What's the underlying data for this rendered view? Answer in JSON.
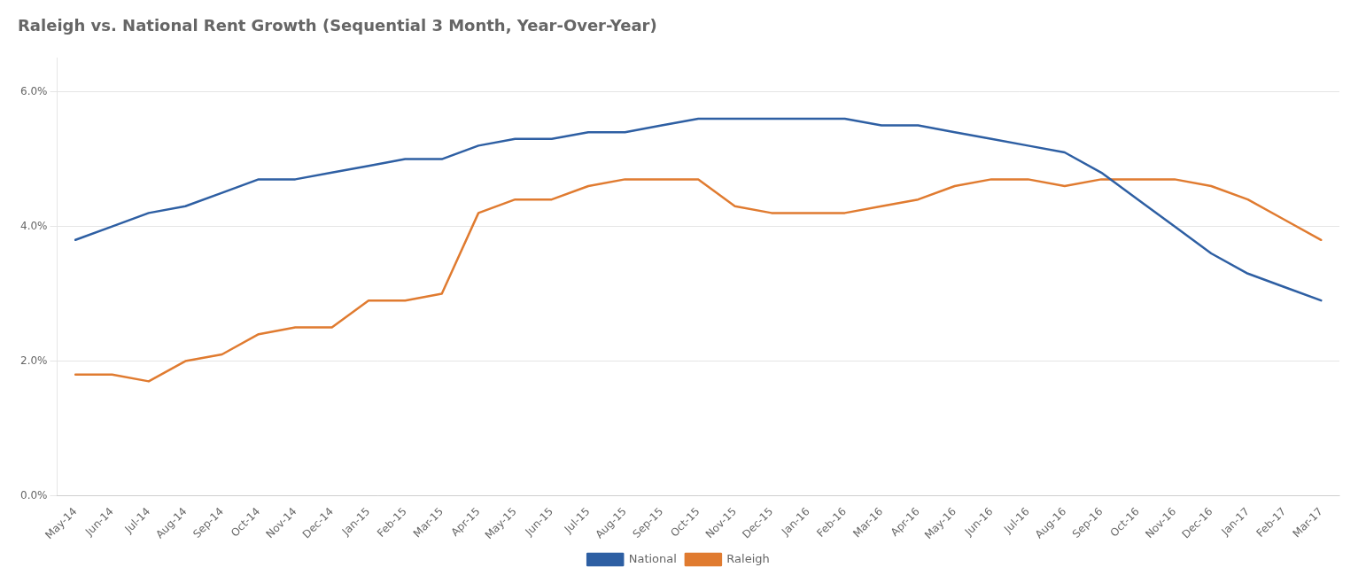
{
  "chart_data": {
    "type": "line",
    "title": "Raleigh vs. National Rent Growth (Sequential 3 Month, Year-Over-Year)",
    "categories": [
      "May-14",
      "Jun-14",
      "Jul-14",
      "Aug-14",
      "Sep-14",
      "Oct-14",
      "Nov-14",
      "Dec-14",
      "Jan-15",
      "Feb-15",
      "Mar-15",
      "Apr-15",
      "May-15",
      "Jun-15",
      "Jul-15",
      "Aug-15",
      "Sep-15",
      "Oct-15",
      "Nov-15",
      "Dec-15",
      "Jan-16",
      "Feb-16",
      "Mar-16",
      "Apr-16",
      "May-16",
      "Jun-16",
      "Jul-16",
      "Aug-16",
      "Sep-16",
      "Oct-16",
      "Nov-16",
      "Dec-16",
      "Jan-17",
      "Feb-17",
      "Mar-17"
    ],
    "series": [
      {
        "name": "National",
        "color": "#2e5fa3",
        "values": [
          0.038,
          0.04,
          0.042,
          0.043,
          0.045,
          0.047,
          0.047,
          0.048,
          0.049,
          0.05,
          0.05,
          0.052,
          0.053,
          0.053,
          0.054,
          0.054,
          0.055,
          0.056,
          0.056,
          0.056,
          0.056,
          0.056,
          0.055,
          0.055,
          0.054,
          0.053,
          0.052,
          0.051,
          0.048,
          0.044,
          0.04,
          0.036,
          0.033,
          0.031,
          0.029
        ]
      },
      {
        "name": "Raleigh",
        "color": "#e07b30",
        "values": [
          0.018,
          0.018,
          0.017,
          0.02,
          0.021,
          0.024,
          0.025,
          0.025,
          0.029,
          0.029,
          0.03,
          0.042,
          0.044,
          0.044,
          0.046,
          0.047,
          0.047,
          0.047,
          0.043,
          0.042,
          0.042,
          0.042,
          0.043,
          0.044,
          0.046,
          0.047,
          0.047,
          0.046,
          0.047,
          0.047,
          0.047,
          0.046,
          0.044,
          0.041,
          0.038
        ]
      }
    ],
    "ylim": [
      0.0,
      0.065
    ],
    "yticks": [
      {
        "value": 0.0,
        "label": "0.0%"
      },
      {
        "value": 0.02,
        "label": "2.0%"
      },
      {
        "value": 0.04,
        "label": "4.0%"
      },
      {
        "value": 0.06,
        "label": "6.0%"
      }
    ],
    "grid": true,
    "legend": "bottom"
  }
}
